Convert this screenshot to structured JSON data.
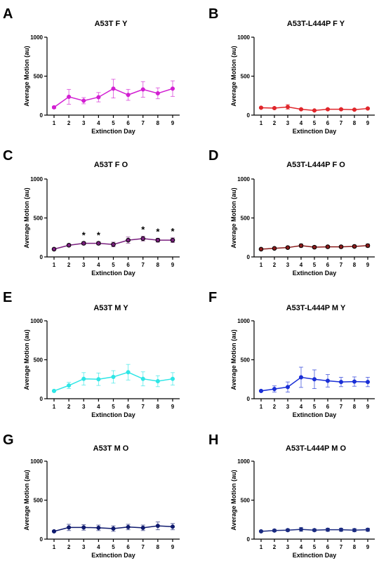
{
  "chart_data": [
    {
      "id": "A",
      "type": "line",
      "letter": "A",
      "title": "A53T F Y",
      "xlabel": "Extinction Day",
      "ylabel": "Average Motion (au)",
      "x": [
        1,
        2,
        3,
        4,
        5,
        6,
        7,
        8,
        9
      ],
      "ylim": [
        0,
        1000
      ],
      "yticks": [
        0,
        500,
        1000
      ],
      "color": "#d21fd2",
      "marker": "filled",
      "series": [
        {
          "values": [
            100,
            235,
            185,
            230,
            340,
            260,
            330,
            280,
            340
          ],
          "errors": [
            15,
            95,
            40,
            60,
            120,
            70,
            100,
            70,
            100
          ]
        }
      ],
      "significance": [],
      "significance_label": "*"
    },
    {
      "id": "B",
      "type": "line",
      "letter": "B",
      "title": "A53T-L444P F Y",
      "xlabel": "Extinction Day",
      "ylabel": "Average Motion (au)",
      "x": [
        1,
        2,
        3,
        4,
        5,
        6,
        7,
        8,
        9
      ],
      "ylim": [
        0,
        1000
      ],
      "yticks": [
        0,
        500,
        1000
      ],
      "color": "#e0262b",
      "marker": "filled",
      "series": [
        {
          "values": [
            95,
            90,
            105,
            75,
            60,
            75,
            75,
            70,
            85
          ],
          "errors": [
            10,
            10,
            30,
            10,
            8,
            10,
            10,
            8,
            10
          ]
        }
      ],
      "significance": [],
      "significance_label": "*"
    },
    {
      "id": "C",
      "type": "line",
      "letter": "C",
      "title": "A53T F O",
      "xlabel": "Extinction Day",
      "ylabel": "Average Motion (au)",
      "x": [
        1,
        2,
        3,
        4,
        5,
        6,
        7,
        8,
        9
      ],
      "ylim": [
        0,
        1000
      ],
      "yticks": [
        0,
        500,
        1000
      ],
      "color": "#7a1f7f",
      "marker": "ring",
      "series": [
        {
          "values": [
            100,
            150,
            175,
            175,
            160,
            215,
            235,
            215,
            215
          ],
          "errors": [
            10,
            15,
            20,
            20,
            30,
            40,
            30,
            25,
            30
          ]
        }
      ],
      "significance": [
        3,
        4,
        7,
        8,
        9
      ],
      "significance_label": "*"
    },
    {
      "id": "D",
      "type": "line",
      "letter": "D",
      "title": "A53T-L444P F O",
      "xlabel": "Extinction Day",
      "ylabel": "Average Motion (au)",
      "x": [
        1,
        2,
        3,
        4,
        5,
        6,
        7,
        8,
        9
      ],
      "ylim": [
        0,
        1000
      ],
      "yticks": [
        0,
        500,
        1000
      ],
      "color": "#8a1a1a",
      "marker": "ring",
      "series": [
        {
          "values": [
            100,
            110,
            120,
            145,
            125,
            130,
            130,
            135,
            145
          ],
          "errors": [
            10,
            10,
            15,
            20,
            15,
            15,
            15,
            15,
            20
          ]
        }
      ],
      "significance": [],
      "significance_label": "*"
    },
    {
      "id": "E",
      "type": "line",
      "letter": "E",
      "title": "A53T M Y",
      "xlabel": "Extinction Day",
      "ylabel": "Average Motion (au)",
      "x": [
        1,
        2,
        3,
        4,
        5,
        6,
        7,
        8,
        9
      ],
      "ylim": [
        0,
        1000
      ],
      "yticks": [
        0,
        500,
        1000
      ],
      "color": "#2ee6e6",
      "marker": "filled",
      "series": [
        {
          "values": [
            100,
            170,
            255,
            250,
            280,
            340,
            255,
            225,
            255
          ],
          "errors": [
            10,
            40,
            80,
            80,
            80,
            100,
            90,
            70,
            80
          ]
        }
      ],
      "significance": [],
      "significance_label": "*"
    },
    {
      "id": "F",
      "type": "line",
      "letter": "F",
      "title": "A53T-L444P M Y",
      "xlabel": "Extinction Day",
      "ylabel": "Average Motion (au)",
      "x": [
        1,
        2,
        3,
        4,
        5,
        6,
        7,
        8,
        9
      ],
      "ylim": [
        0,
        1000
      ],
      "yticks": [
        0,
        500,
        1000
      ],
      "color": "#1a2fd6",
      "marker": "filled",
      "series": [
        {
          "values": [
            100,
            125,
            150,
            275,
            250,
            230,
            215,
            220,
            215
          ],
          "errors": [
            10,
            40,
            65,
            130,
            120,
            80,
            60,
            60,
            60
          ]
        }
      ],
      "significance": [],
      "significance_label": "*"
    },
    {
      "id": "G",
      "type": "line",
      "letter": "G",
      "title": "A53T M O",
      "xlabel": "Extinction Day",
      "ylabel": "Average Motion (au)",
      "x": [
        1,
        2,
        3,
        4,
        5,
        6,
        7,
        8,
        9
      ],
      "ylim": [
        0,
        1000
      ],
      "yticks": [
        0,
        500,
        1000
      ],
      "color": "#0f1a6e",
      "marker": "filled",
      "series": [
        {
          "values": [
            100,
            150,
            150,
            145,
            135,
            155,
            145,
            170,
            160
          ],
          "errors": [
            10,
            40,
            35,
            35,
            35,
            35,
            35,
            50,
            40
          ]
        }
      ],
      "significance": [],
      "significance_label": "*"
    },
    {
      "id": "H",
      "type": "line",
      "letter": "H",
      "title": "A53T-L444P M O",
      "xlabel": "Extinction Day",
      "ylabel": "Average Motion (au)",
      "x": [
        1,
        2,
        3,
        4,
        5,
        6,
        7,
        8,
        9
      ],
      "ylim": [
        0,
        1000
      ],
      "yticks": [
        0,
        500,
        1000
      ],
      "color": "#1a2a80",
      "marker": "filled",
      "series": [
        {
          "values": [
            100,
            110,
            115,
            125,
            115,
            120,
            120,
            115,
            120
          ],
          "errors": [
            10,
            15,
            15,
            25,
            15,
            20,
            20,
            20,
            20
          ]
        }
      ],
      "significance": [],
      "significance_label": "*"
    }
  ]
}
